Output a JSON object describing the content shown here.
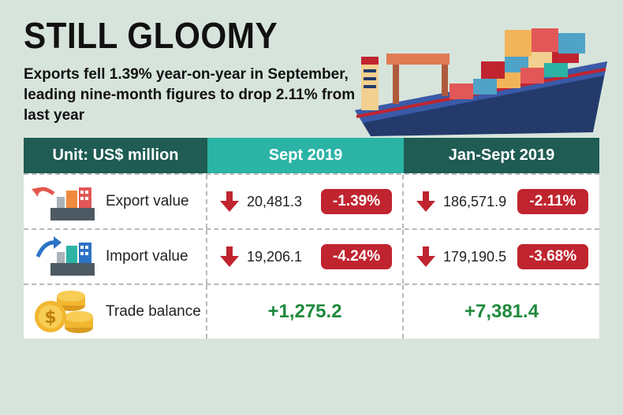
{
  "title": "STILL GLOOMY",
  "subtitle": "Exports fell 1.39% year-on-year  in September, leading nine-month figures to drop 2.11% from last year",
  "chart_data": {
    "type": "table",
    "columns": [
      "Unit: US$ million",
      "Sept 2019",
      "Jan-Sept 2019"
    ],
    "rows": [
      {
        "label": "Export value",
        "icon": "export-ship-icon",
        "sept": {
          "value": "20,481.3",
          "change": "-1.39%",
          "trend": "down"
        },
        "jan_sept": {
          "value": "186,571.9",
          "change": "-2.11%",
          "trend": "down"
        }
      },
      {
        "label": "Import value",
        "icon": "import-ship-icon",
        "sept": {
          "value": "19,206.1",
          "change": "-4.24%",
          "trend": "down"
        },
        "jan_sept": {
          "value": "179,190.5",
          "change": "-3.68%",
          "trend": "down"
        }
      },
      {
        "label": "Trade balance",
        "icon": "coins-icon",
        "sept": {
          "value": "+1,275.2"
        },
        "jan_sept": {
          "value": "+7,381.4"
        }
      }
    ]
  },
  "colors": {
    "background": "#d7e4dc",
    "header_dark": "#1f5c53",
    "header_teal": "#2bb3a6",
    "down_red": "#c0242f",
    "positive_green": "#1e8a3c"
  }
}
